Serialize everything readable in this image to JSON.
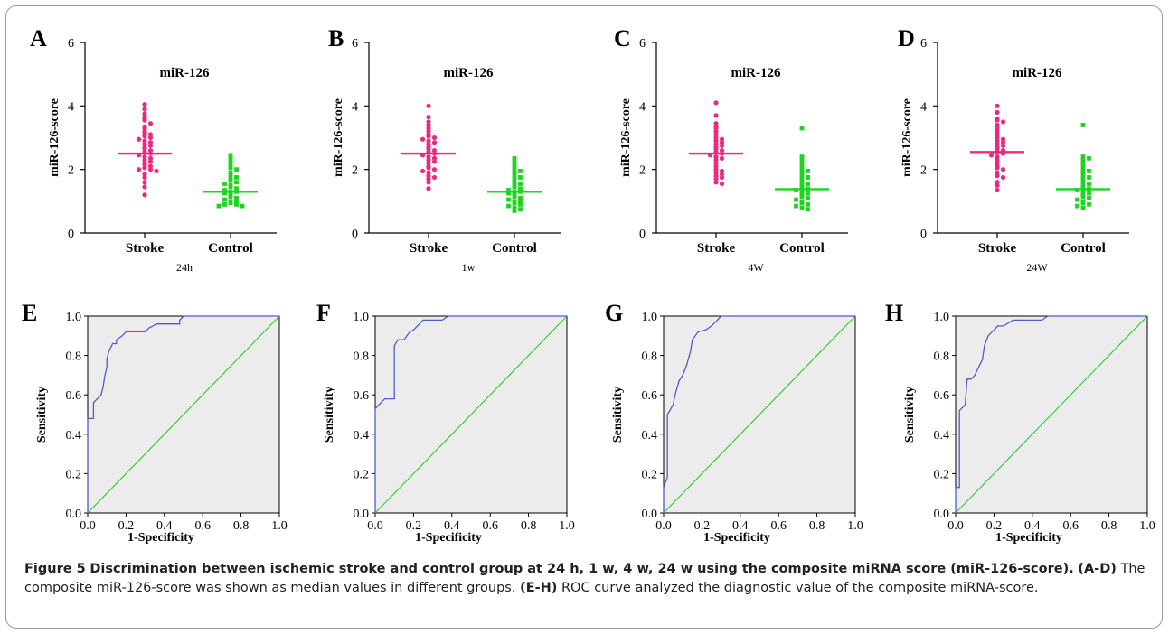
{
  "colors": {
    "stroke": "#f0287d",
    "control": "#1fd41f",
    "roc_curve": "#4e5ec4",
    "diagonal": "#3ec83e",
    "roc_fill": "#ececec"
  },
  "chart_data": [
    {
      "panel": "A",
      "type": "scatter",
      "title": "miR-126",
      "ylabel": "miR-126-score",
      "xsublabel": "24h",
      "categories": [
        "Stroke",
        "Control"
      ],
      "ylim": [
        0,
        6
      ],
      "yticks": [
        0,
        2,
        4,
        6
      ],
      "median": [
        2.5,
        1.3
      ],
      "series": [
        {
          "name": "Stroke",
          "values": [
            4.05,
            3.9,
            3.75,
            3.65,
            3.6,
            3.55,
            3.45,
            3.35,
            3.3,
            3.2,
            3.15,
            3.1,
            3.05,
            3.0,
            2.95,
            2.9,
            2.85,
            2.8,
            2.75,
            2.7,
            2.65,
            2.6,
            2.55,
            2.5,
            2.45,
            2.4,
            2.35,
            2.3,
            2.25,
            2.2,
            2.15,
            2.1,
            2.05,
            2.0,
            2.0,
            1.95,
            1.85,
            1.75,
            1.6,
            1.45,
            1.2
          ]
        },
        {
          "name": "Control",
          "values": [
            2.45,
            2.4,
            2.3,
            2.2,
            2.1,
            2.05,
            2.0,
            1.9,
            1.8,
            1.75,
            1.7,
            1.65,
            1.6,
            1.55,
            1.5,
            1.45,
            1.4,
            1.35,
            1.3,
            1.3,
            1.25,
            1.2,
            1.15,
            1.1,
            1.05,
            1.0,
            1.0,
            0.95,
            0.9,
            0.9,
            0.85,
            0.85
          ]
        }
      ]
    },
    {
      "panel": "B",
      "type": "scatter",
      "title": "miR-126",
      "ylabel": "miR-126-score",
      "xsublabel": "1w",
      "categories": [
        "Stroke",
        "Control"
      ],
      "ylim": [
        0,
        6
      ],
      "yticks": [
        0,
        2,
        4,
        6
      ],
      "median": [
        2.5,
        1.3
      ],
      "series": [
        {
          "name": "Stroke",
          "values": [
            4.0,
            3.65,
            3.5,
            3.4,
            3.3,
            3.2,
            3.1,
            3.05,
            3.0,
            2.95,
            2.9,
            2.85,
            2.8,
            2.7,
            2.65,
            2.6,
            2.55,
            2.5,
            2.45,
            2.4,
            2.35,
            2.3,
            2.25,
            2.2,
            2.1,
            2.05,
            2.0,
            1.95,
            1.9,
            1.8,
            1.75,
            1.7,
            1.6,
            1.4
          ]
        },
        {
          "name": "Control",
          "values": [
            2.35,
            2.3,
            2.2,
            2.1,
            2.0,
            1.95,
            1.9,
            1.8,
            1.75,
            1.7,
            1.6,
            1.55,
            1.5,
            1.45,
            1.4,
            1.35,
            1.3,
            1.3,
            1.25,
            1.2,
            1.15,
            1.1,
            1.05,
            1.0,
            1.0,
            0.95,
            0.9,
            0.85,
            0.8,
            0.75,
            0.7
          ]
        }
      ]
    },
    {
      "panel": "C",
      "type": "scatter",
      "title": "miR-126",
      "ylabel": "miR-126-score",
      "xsublabel": "4W",
      "categories": [
        "Stroke",
        "Control"
      ],
      "ylim": [
        0,
        6
      ],
      "yticks": [
        0,
        2,
        4,
        6
      ],
      "median": [
        2.5,
        1.38
      ],
      "series": [
        {
          "name": "Stroke",
          "values": [
            4.1,
            3.7,
            3.45,
            3.35,
            3.3,
            3.2,
            3.1,
            3.0,
            2.95,
            2.9,
            2.85,
            2.8,
            2.75,
            2.7,
            2.65,
            2.6,
            2.55,
            2.5,
            2.45,
            2.4,
            2.35,
            2.3,
            2.2,
            2.1,
            2.0,
            1.95,
            1.9,
            1.85,
            1.8,
            1.75,
            1.7,
            1.6,
            1.55
          ]
        },
        {
          "name": "Control",
          "values": [
            3.3,
            2.4,
            2.3,
            2.2,
            2.1,
            2.0,
            1.95,
            1.9,
            1.8,
            1.75,
            1.7,
            1.6,
            1.55,
            1.5,
            1.45,
            1.4,
            1.35,
            1.3,
            1.25,
            1.2,
            1.15,
            1.1,
            1.05,
            1.0,
            0.95,
            0.9,
            0.85,
            0.8,
            0.75
          ]
        }
      ]
    },
    {
      "panel": "D",
      "type": "scatter",
      "title": "miR-126",
      "ylabel": "miR-126-score",
      "xsublabel": "24W",
      "categories": [
        "Stroke",
        "Control"
      ],
      "ylim": [
        0,
        6
      ],
      "yticks": [
        0,
        2,
        4,
        6
      ],
      "median": [
        2.55,
        1.38
      ],
      "series": [
        {
          "name": "Stroke",
          "values": [
            4.0,
            3.8,
            3.6,
            3.55,
            3.5,
            3.4,
            3.3,
            3.2,
            3.1,
            3.0,
            2.95,
            2.9,
            2.85,
            2.8,
            2.75,
            2.7,
            2.65,
            2.6,
            2.55,
            2.5,
            2.45,
            2.4,
            2.3,
            2.2,
            2.1,
            2.05,
            2.0,
            1.9,
            1.8,
            1.75,
            1.6,
            1.5,
            1.35
          ]
        },
        {
          "name": "Control",
          "values": [
            3.4,
            2.4,
            2.35,
            2.3,
            2.2,
            2.1,
            2.0,
            1.95,
            1.9,
            1.8,
            1.75,
            1.7,
            1.6,
            1.55,
            1.5,
            1.45,
            1.4,
            1.35,
            1.3,
            1.25,
            1.2,
            1.15,
            1.1,
            1.05,
            1.0,
            0.95,
            0.9,
            0.85,
            0.8
          ]
        }
      ]
    },
    {
      "panel": "E",
      "type": "line",
      "xlabel": "1-Specificity",
      "ylabel": "Sensitivity",
      "xlim": [
        0,
        1
      ],
      "ylim": [
        0,
        1
      ],
      "ticks": [
        "0.0",
        "0.2",
        "0.4",
        "0.6",
        "0.8",
        "1.0"
      ],
      "curve": {
        "x": [
          0,
          0,
          0.03,
          0.03,
          0.07,
          0.08,
          0.09,
          0.1,
          0.1,
          0.11,
          0.12,
          0.13,
          0.15,
          0.15,
          0.18,
          0.2,
          0.22,
          0.25,
          0.28,
          0.3,
          0.32,
          0.36,
          0.4,
          0.48,
          0.48,
          0.5,
          0.6,
          1.0
        ],
        "y": [
          0,
          0.48,
          0.48,
          0.56,
          0.6,
          0.64,
          0.7,
          0.74,
          0.78,
          0.82,
          0.84,
          0.86,
          0.86,
          0.88,
          0.9,
          0.92,
          0.92,
          0.92,
          0.92,
          0.92,
          0.94,
          0.96,
          0.96,
          0.96,
          0.98,
          1.0,
          1.0,
          1.0
        ]
      },
      "diagonal": {
        "x": [
          0,
          1
        ],
        "y": [
          0,
          1
        ]
      }
    },
    {
      "panel": "F",
      "type": "line",
      "xlabel": "1-Specificity",
      "ylabel": "Sensitivity",
      "xlim": [
        0,
        1
      ],
      "ylim": [
        0,
        1
      ],
      "ticks": [
        "0.0",
        "0.2",
        "0.4",
        "0.6",
        "0.8",
        "1.0"
      ],
      "curve": {
        "x": [
          0,
          0,
          0.02,
          0.05,
          0.1,
          0.1,
          0.12,
          0.15,
          0.18,
          0.2,
          0.22,
          0.25,
          0.3,
          0.35,
          0.38,
          0.5,
          1.0
        ],
        "y": [
          0,
          0.53,
          0.55,
          0.58,
          0.58,
          0.85,
          0.88,
          0.88,
          0.92,
          0.93,
          0.95,
          0.98,
          0.98,
          0.98,
          1.0,
          1.0,
          1.0
        ]
      },
      "diagonal": {
        "x": [
          0,
          1
        ],
        "y": [
          0,
          1
        ]
      }
    },
    {
      "panel": "G",
      "type": "line",
      "xlabel": "1-Specificity",
      "ylabel": "Sensitivity",
      "xlim": [
        0,
        1
      ],
      "ylim": [
        0,
        1
      ],
      "ticks": [
        "0.0",
        "0.2",
        "0.4",
        "0.6",
        "0.8",
        "1.0"
      ],
      "curve": {
        "x": [
          0,
          0,
          0.02,
          0.02,
          0.05,
          0.06,
          0.08,
          0.1,
          0.12,
          0.14,
          0.15,
          0.18,
          0.22,
          0.25,
          0.28,
          0.3,
          0.32,
          0.5,
          1.0
        ],
        "y": [
          0,
          0.13,
          0.18,
          0.5,
          0.55,
          0.6,
          0.67,
          0.7,
          0.75,
          0.82,
          0.88,
          0.92,
          0.93,
          0.95,
          0.98,
          1.0,
          1.0,
          1.0,
          1.0
        ]
      },
      "diagonal": {
        "x": [
          0,
          1
        ],
        "y": [
          0,
          1
        ]
      }
    },
    {
      "panel": "H",
      "type": "line",
      "xlabel": "1-Specificity",
      "ylabel": "Sensitivity",
      "xlim": [
        0,
        1
      ],
      "ylim": [
        0,
        1
      ],
      "ticks": [
        "0.0",
        "0.2",
        "0.4",
        "0.6",
        "0.8",
        "1.0"
      ],
      "curve": {
        "x": [
          0,
          0,
          0.02,
          0.02,
          0.05,
          0.06,
          0.08,
          0.1,
          0.12,
          0.14,
          0.15,
          0.17,
          0.2,
          0.22,
          0.25,
          0.3,
          0.45,
          0.48,
          0.5,
          1.0
        ],
        "y": [
          0,
          0.13,
          0.13,
          0.52,
          0.55,
          0.68,
          0.68,
          0.7,
          0.74,
          0.78,
          0.85,
          0.9,
          0.93,
          0.95,
          0.95,
          0.98,
          0.98,
          1.0,
          1.0,
          1.0
        ]
      },
      "diagonal": {
        "x": [
          0,
          1
        ],
        "y": [
          0,
          1
        ]
      }
    }
  ],
  "caption": {
    "label": "Figure 5",
    "title": "Discrimination between ischemic stroke and control group at 24 h, 1 w, 4 w, 24 w using the composite miRNA score (miR-126-score).",
    "ad_ref": "(A-D)",
    "ad_text": "The composite miR-126-score was shown as median values in different groups.",
    "eh_ref": "(E-H)",
    "eh_text": "ROC curve analyzed the diagnostic value of the composite miRNA-score."
  }
}
